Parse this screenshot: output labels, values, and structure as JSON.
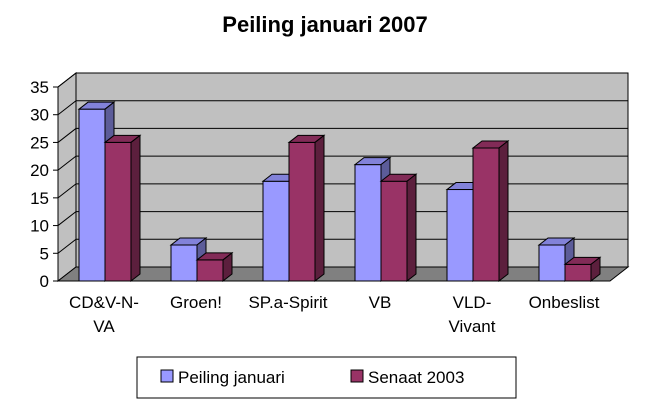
{
  "chart_data": {
    "type": "bar",
    "title": "Peiling januari 2007",
    "categories": [
      [
        "CD&V-N-",
        "VA"
      ],
      [
        "Groen!"
      ],
      [
        "SP.a-Spirit"
      ],
      [
        "VB"
      ],
      [
        "VLD-",
        "Vivant"
      ],
      [
        "Onbeslist"
      ]
    ],
    "series": [
      {
        "name": "Peiling januari",
        "values": [
          31,
          6.5,
          18,
          21,
          16.5,
          6.5
        ]
      },
      {
        "name": "Senaat 2003",
        "values": [
          25,
          3.8,
          25,
          18,
          24,
          3
        ]
      }
    ],
    "ylim": [
      0,
      35
    ],
    "yticks": [
      "0",
      "5",
      "10",
      "15",
      "20",
      "25",
      "30",
      "35"
    ],
    "grid": true,
    "legend": "bottom",
    "colors": {
      "series": [
        "#9999ff",
        "#993366"
      ],
      "wall": "#c0c0c0",
      "floor": "#808080"
    }
  }
}
